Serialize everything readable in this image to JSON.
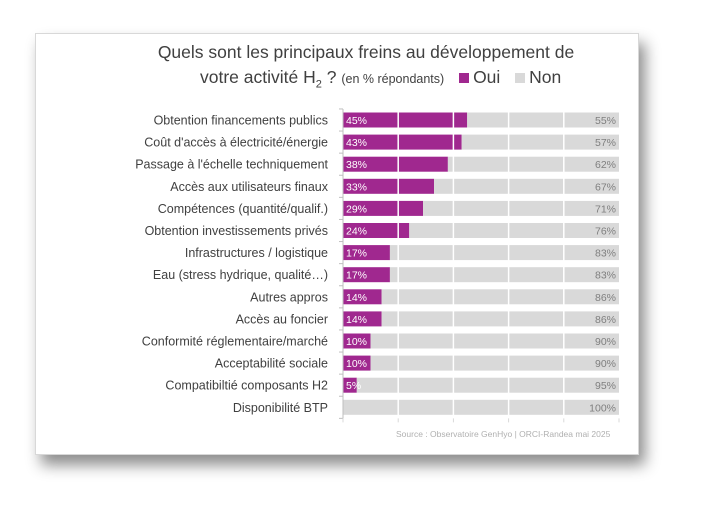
{
  "chart_data": {
    "type": "bar",
    "orientation": "horizontal",
    "stacked": true,
    "title_line1": "Quels sont les principaux freins au développement de",
    "title_line2_main": "votre activité H",
    "title_line2_sub": "2",
    "title_line2_end": " ?",
    "unit_note": "(en % répondants)",
    "source": "Source : Observatoire GenHyo | ORCI-Randea mai 2025",
    "xlim": [
      0,
      100
    ],
    "grid": true,
    "legend_position": "top-right",
    "categories": [
      "Obtention financements publics",
      "Coût d'accès à électricité/énergie",
      "Passage à l'échelle techniquement",
      "Accès aux utilisateurs finaux",
      "Compétences (quantité/qualif.)",
      "Obtention investissements privés",
      "Infrastructures / logistique",
      "Eau (stress hydrique, qualité…)",
      "Autres appros",
      "Accès au foncier",
      "Conformité réglementaire/marché",
      "Acceptabilité sociale",
      "Compatibiltié composants H2",
      "Disponibilité BTP"
    ],
    "series": [
      {
        "name": "Oui",
        "color": "#a0288f",
        "values": [
          45,
          43,
          38,
          33,
          29,
          24,
          17,
          17,
          14,
          14,
          10,
          10,
          5,
          0
        ],
        "labels": [
          "45%",
          "43%",
          "38%",
          "33%",
          "29%",
          "24%",
          "17%",
          "17%",
          "14%",
          "14%",
          "10%",
          "10%",
          "5%",
          ""
        ]
      },
      {
        "name": "Non",
        "color": "#d9d9d9",
        "values": [
          55,
          57,
          62,
          67,
          71,
          76,
          83,
          83,
          86,
          86,
          90,
          90,
          95,
          100
        ],
        "labels": [
          "55%",
          "57%",
          "62%",
          "67%",
          "71%",
          "76%",
          "83%",
          "83%",
          "86%",
          "86%",
          "90%",
          "90%",
          "95%",
          "100%"
        ]
      }
    ]
  }
}
